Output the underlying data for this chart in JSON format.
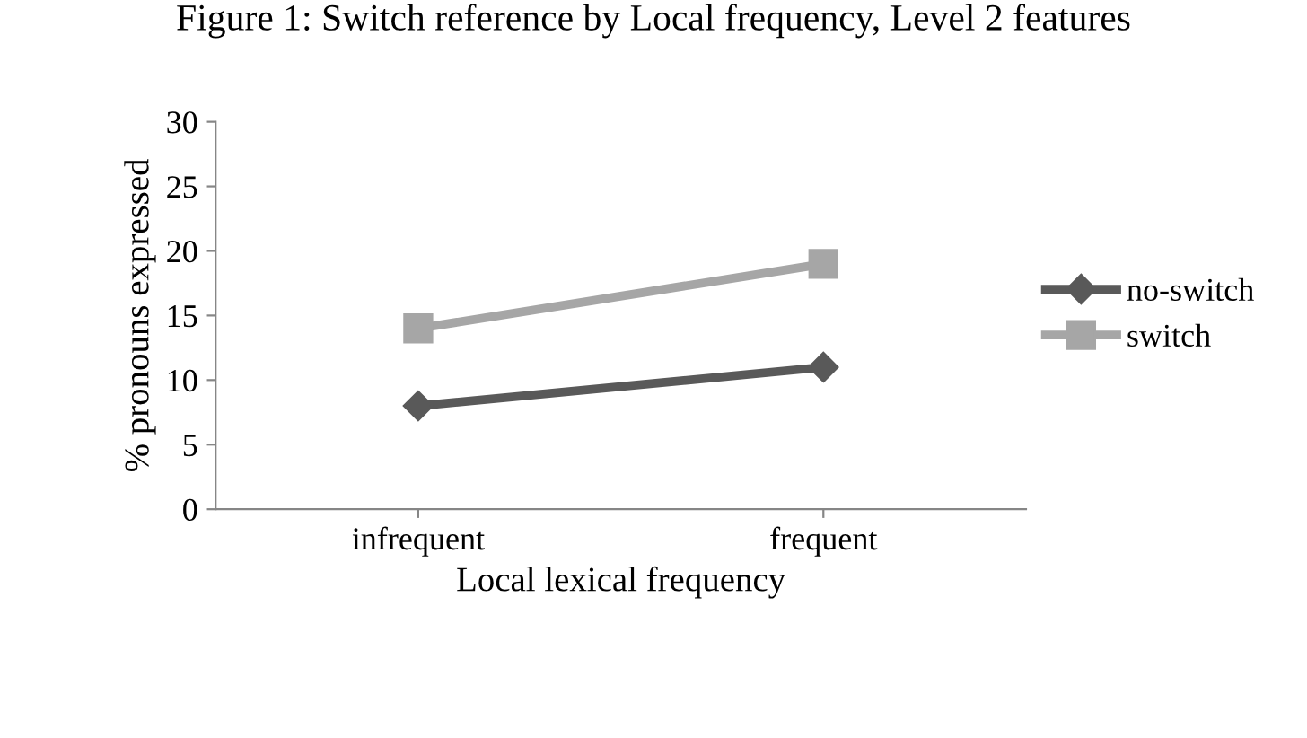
{
  "chart_data": {
    "type": "line",
    "title": "Figure 1: Switch reference by Local frequency, Level 2 features",
    "xlabel": "Local lexical frequency",
    "ylabel": "% pronouns expressed",
    "categories": [
      "infrequent",
      "frequent"
    ],
    "series": [
      {
        "name": "no-switch",
        "color": "#595959",
        "values": [
          8,
          11
        ],
        "marker": "diamond"
      },
      {
        "name": "switch",
        "color": "#a6a6a6",
        "values": [
          14,
          19
        ],
        "marker": "square"
      }
    ],
    "ylim": [
      0,
      30
    ],
    "yticks": [
      0,
      5,
      10,
      15,
      20,
      25,
      30
    ],
    "grid": false,
    "legend": "right"
  }
}
